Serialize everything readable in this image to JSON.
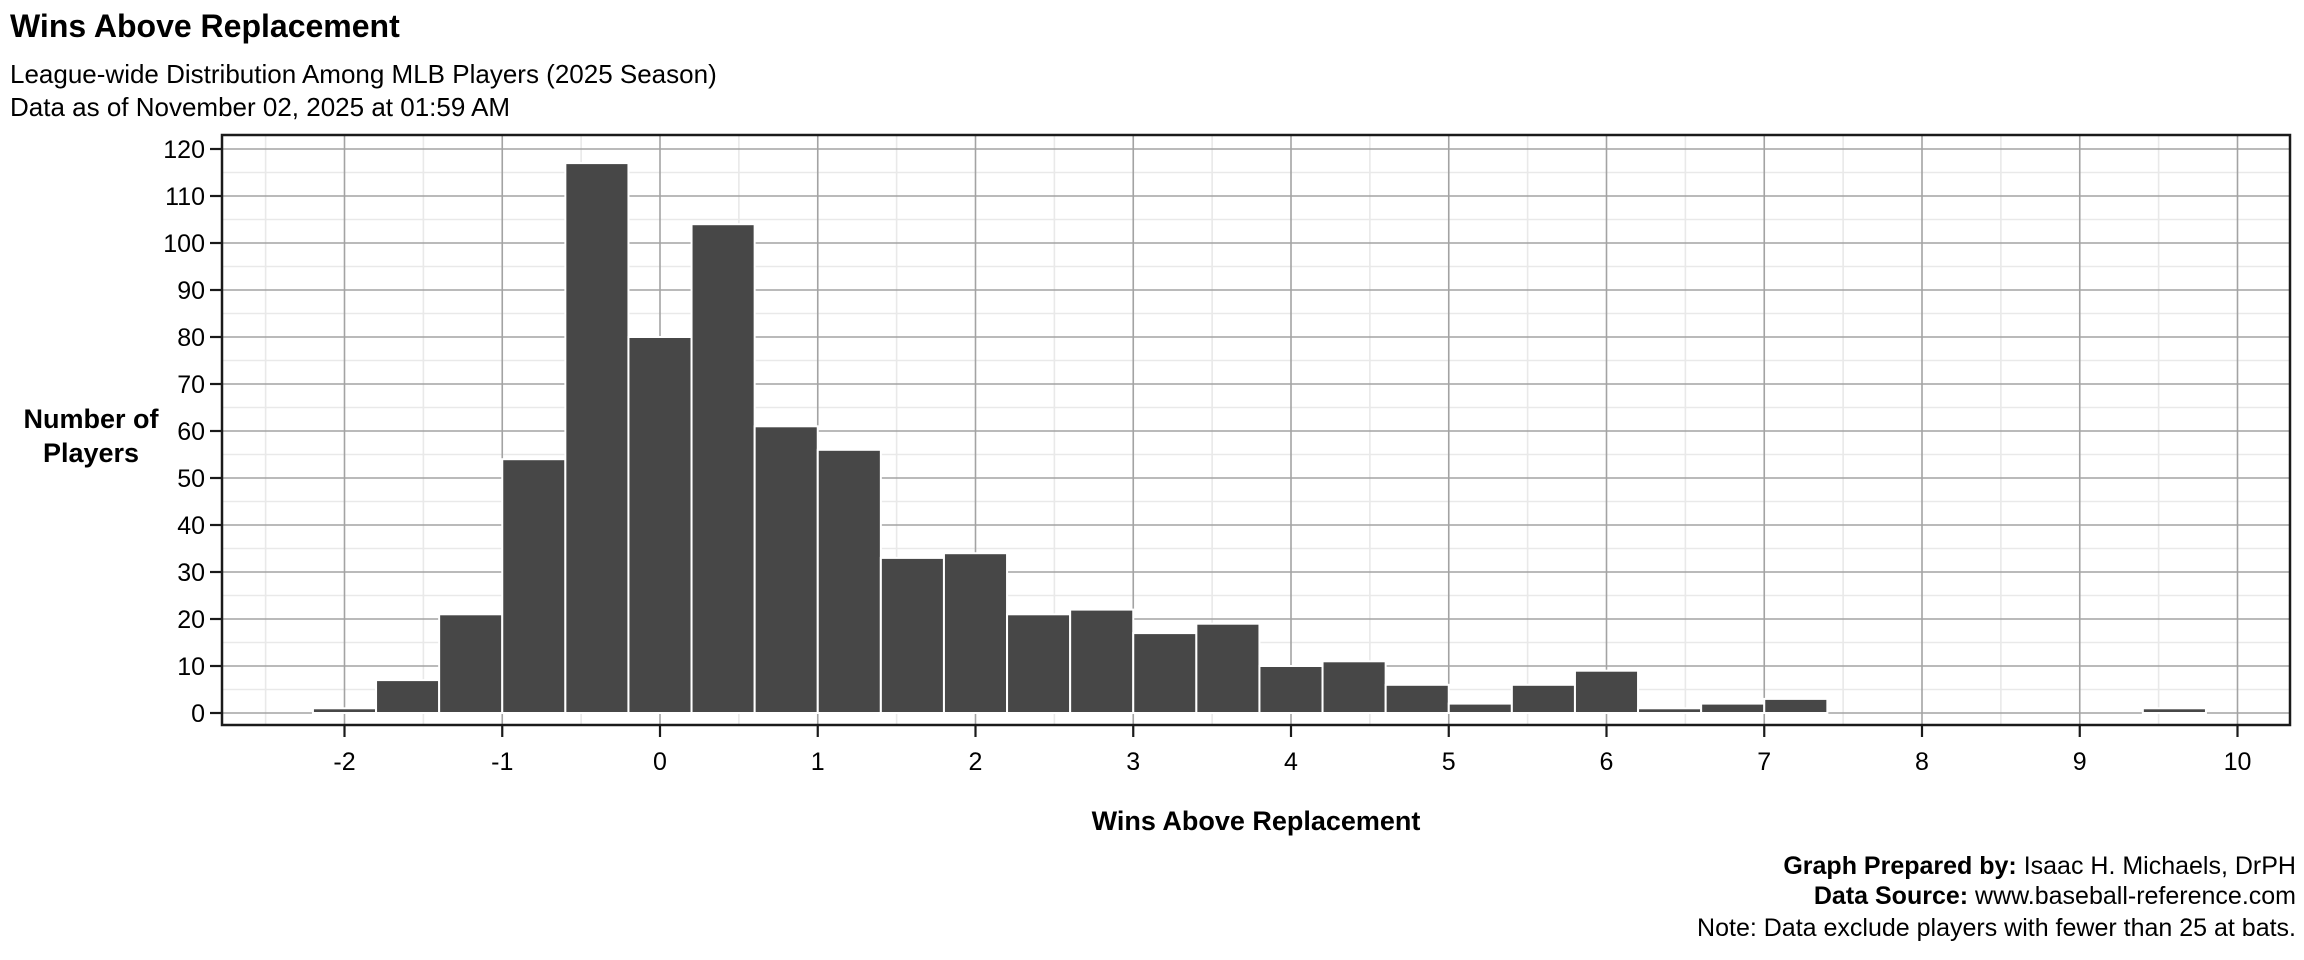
{
  "header": {
    "title": "Wins Above Replacement",
    "subtitle_line1": "League-wide Distribution Among MLB Players (2025 Season)",
    "subtitle_line2": "Data as of November 02, 2025 at 01:59 AM"
  },
  "chart_data": {
    "type": "bar",
    "subtype": "histogram",
    "title": "Wins Above Replacement",
    "xlabel": "Wins Above Replacement",
    "ylabel_line1": "Number of",
    "ylabel_line2": "Players",
    "bin_width": 0.4,
    "bin_centers": [
      -2.0,
      -1.6,
      -1.2,
      -0.8,
      -0.4,
      0.0,
      0.4,
      0.8,
      1.2,
      1.6,
      2.0,
      2.4,
      2.8,
      3.2,
      3.6,
      4.0,
      4.4,
      4.8,
      5.2,
      5.6,
      6.0,
      6.4,
      6.8,
      7.2,
      7.6,
      8.0,
      8.4,
      8.8,
      9.2,
      9.6
    ],
    "values": [
      1,
      7,
      21,
      54,
      117,
      80,
      104,
      61,
      56,
      33,
      34,
      21,
      22,
      17,
      19,
      10,
      11,
      6,
      2,
      6,
      9,
      1,
      2,
      3,
      0,
      0,
      0,
      0,
      0,
      1
    ],
    "x_ticks": [
      -2,
      -1,
      0,
      1,
      2,
      3,
      4,
      5,
      6,
      7,
      8,
      9,
      10
    ],
    "x_tick_labels": [
      "-2",
      "-1",
      "0",
      "1",
      "2",
      "3",
      "4",
      "5",
      "6",
      "7",
      "8",
      "9",
      "10"
    ],
    "y_ticks": [
      0,
      10,
      20,
      30,
      40,
      50,
      60,
      70,
      80,
      90,
      100,
      110,
      120
    ],
    "y_tick_labels": [
      "0",
      "10",
      "20",
      "30",
      "40",
      "50",
      "60",
      "70",
      "80",
      "90",
      "100",
      "110",
      "120"
    ],
    "xlim": [
      -2.77,
      10.33
    ],
    "ylim": [
      0,
      123
    ],
    "grid": "on",
    "legend": "none",
    "bar_color": "#474747",
    "bar_stroke": "#ffffff",
    "grid_major_color": "#a3a3a3",
    "grid_minor_color": "#e9e9e9",
    "panel_border_color": "#1a1a1a",
    "background_color": "#ffffff"
  },
  "footer": {
    "prepared_by_label": "Graph Prepared by:",
    "prepared_by_value": " Isaac H. Michaels, DrPH",
    "source_label": "Data Source:",
    "source_value": "  www.baseball-reference.com",
    "note": "Note: Data exclude players with fewer than 25 at bats."
  }
}
